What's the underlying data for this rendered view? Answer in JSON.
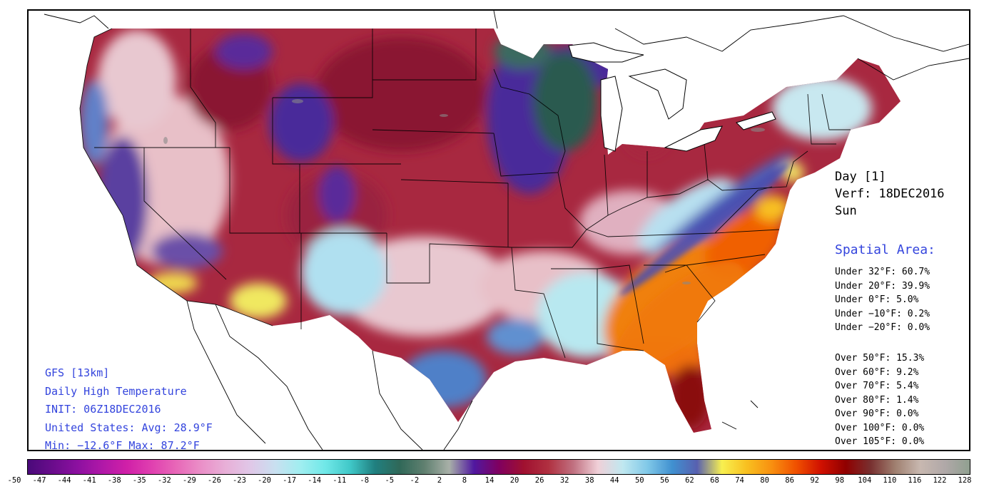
{
  "model_info": {
    "model": "GFS [13km]",
    "field": "Daily High Temperature",
    "init": "INIT: 06Z18DEC2016",
    "avg": "United States: Avg: 28.9°F",
    "minmax": "Min: −12.6°F Max: 87.2°F"
  },
  "valid": {
    "day": "Day [1]",
    "verf": "Verf: 18DEC2016",
    "weekday": "Sun"
  },
  "spatial": {
    "title": "Spatial Area:",
    "under": [
      "Under 32°F: 60.7%",
      "Under 20°F: 39.9%",
      "Under 0°F: 5.0%",
      "Under −10°F: 0.2%",
      "Under −20°F: 0.0%"
    ],
    "over": [
      "Over 50°F: 15.3%",
      "Over 60°F: 9.2%",
      "Over 70°F: 5.4%",
      "Over 80°F: 1.4%",
      "Over 90°F: 0.0%",
      "Over 100°F: 0.0%",
      "Over 105°F: 0.0%"
    ]
  },
  "colorbar": {
    "ticks": [
      "-50",
      "-47",
      "-44",
      "-41",
      "-38",
      "-35",
      "-32",
      "-29",
      "-26",
      "-23",
      "-20",
      "-17",
      "-14",
      "-11",
      "-8",
      "-5",
      "-2",
      "2",
      "8",
      "14",
      "20",
      "26",
      "32",
      "38",
      "44",
      "50",
      "56",
      "62",
      "68",
      "74",
      "80",
      "86",
      "92",
      "98",
      "104",
      "110",
      "116",
      "122",
      "128"
    ],
    "colors": [
      "#4a0a7a",
      "#6a0c8c",
      "#8c10a0",
      "#b018a8",
      "#d020a8",
      "#e040b0",
      "#e868b8",
      "#ea90c8",
      "#e8b0d8",
      "#e0c8e8",
      "#c8e0f0",
      "#a0eef0",
      "#70e8e8",
      "#40c8c8",
      "#208080",
      "#306858",
      "#608070",
      "#a8b0a8",
      "#5018a0",
      "#800060",
      "#a01030",
      "#b03040",
      "#c07080",
      "#f0d0d8",
      "#c0e8f0",
      "#80c8e8",
      "#4090d0",
      "#5860b0",
      "#f8f050",
      "#f8c020",
      "#f89010",
      "#f05000",
      "#d01000",
      "#900000",
      "#783030",
      "#a08070",
      "#c8b8b0",
      "#b0a8a8",
      "#90a090"
    ]
  },
  "map_colors": {
    "background": "#ffffff",
    "cold_plains": "#a82840",
    "deep_red": "#8a1530",
    "pink": "#e8c0c8",
    "purple": "#4a2a9a",
    "blue": "#5080c8",
    "light_blue": "#b8e8f0",
    "dark_teal": "#2a5a50",
    "mid_teal": "#6a9a88",
    "yellow": "#f0e860",
    "orange": "#f08010",
    "dark_orange": "#e04000",
    "florida": "#8a1010"
  }
}
